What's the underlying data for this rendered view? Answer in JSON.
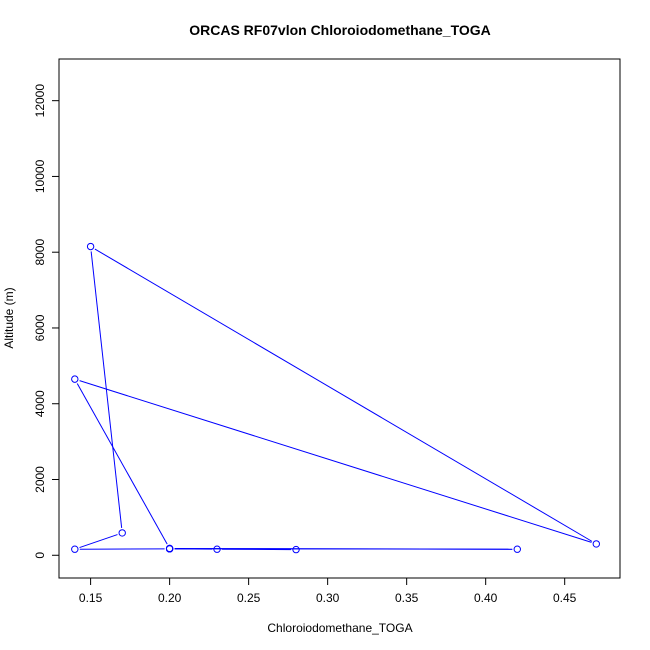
{
  "chart_data": {
    "type": "line",
    "title": "ORCAS RF07vlon Chloroiodomethane_TOGA",
    "xlabel": "Chloroiodomethane_TOGA",
    "ylabel": "Altitude (m)",
    "xlim": [
      0.13,
      0.485
    ],
    "ylim": [
      -600,
      13100
    ],
    "xticks": [
      0.15,
      0.2,
      0.25,
      0.3,
      0.35,
      0.4,
      0.45
    ],
    "xtick_labels": [
      "0.15",
      "0.20",
      "0.25",
      "0.30",
      "0.35",
      "0.40",
      "0.45"
    ],
    "yticks": [
      0,
      2000,
      4000,
      6000,
      8000,
      10000,
      12000
    ],
    "ytick_labels": [
      "0",
      "2000",
      "4000",
      "6000",
      "8000",
      "10000",
      "12000"
    ],
    "series": [
      {
        "color": "#0000ff",
        "marker": "circle-open",
        "x": [
          0.28,
          0.23,
          0.2,
          0.2,
          0.42,
          0.2,
          0.14,
          0.17,
          0.15,
          0.47,
          0.14,
          0.2
        ],
        "y": [
          150,
          160,
          170,
          180,
          160,
          170,
          160,
          590,
          8150,
          300,
          4650,
          180
        ]
      }
    ],
    "grid": false
  }
}
